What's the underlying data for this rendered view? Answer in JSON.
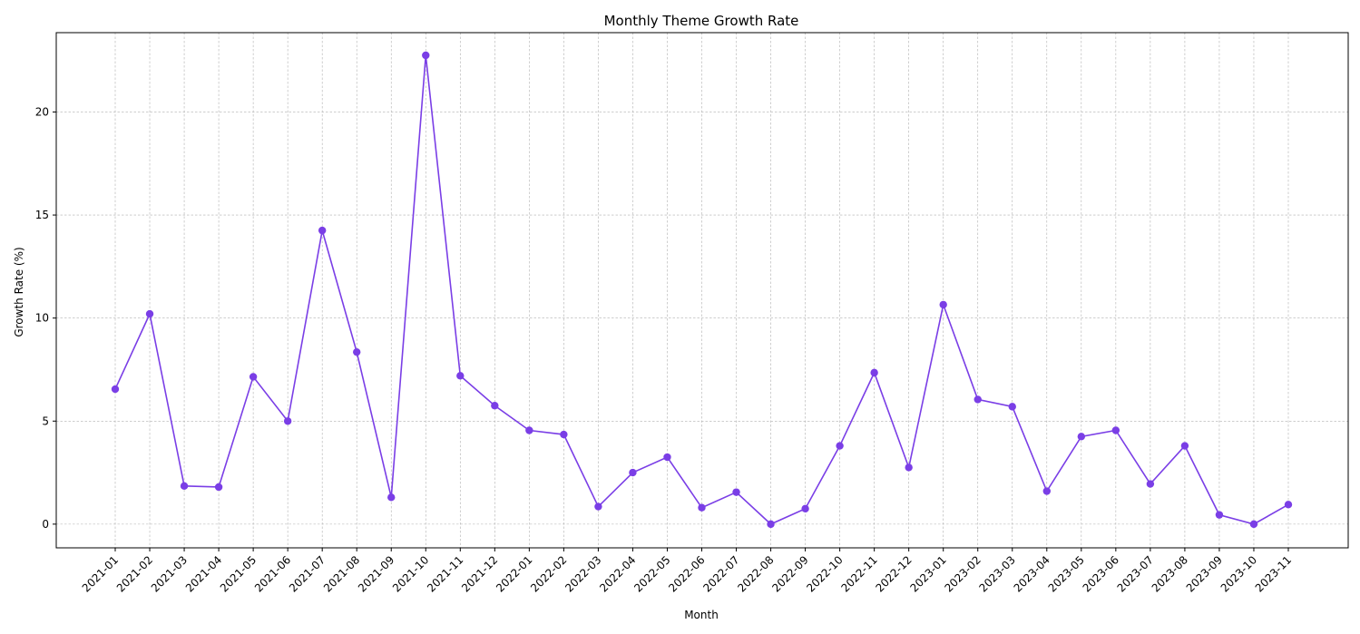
{
  "chart_data": {
    "type": "line",
    "title": "Monthly Theme Growth Rate",
    "xlabel": "Month",
    "ylabel": "Growth Rate (%)",
    "ylim": [
      -1.15,
      23.85
    ],
    "yticks": [
      0,
      5,
      10,
      15,
      20
    ],
    "grid": true,
    "line_color": "#7a3ee6",
    "categories": [
      "2021-01",
      "2021-02",
      "2021-03",
      "2021-04",
      "2021-05",
      "2021-06",
      "2021-07",
      "2021-08",
      "2021-09",
      "2021-10",
      "2021-11",
      "2021-12",
      "2022-01",
      "2022-02",
      "2022-03",
      "2022-04",
      "2022-05",
      "2022-06",
      "2022-07",
      "2022-08",
      "2022-09",
      "2022-10",
      "2022-11",
      "2022-12",
      "2023-01",
      "2023-02",
      "2023-03",
      "2023-04",
      "2023-05",
      "2023-06",
      "2023-07",
      "2023-08",
      "2023-09",
      "2023-10",
      "2023-11"
    ],
    "series": [
      {
        "values": [
          6.55,
          10.2,
          1.85,
          1.8,
          7.15,
          5.0,
          14.25,
          8.35,
          1.3,
          22.75,
          7.2,
          5.75,
          4.55,
          4.35,
          0.85,
          2.5,
          3.25,
          0.8,
          1.55,
          0.0,
          0.75,
          3.8,
          7.35,
          2.75,
          10.65,
          6.05,
          5.7,
          1.6,
          4.25,
          4.55,
          1.95,
          3.8,
          0.45,
          0.0,
          0.95
        ]
      }
    ]
  }
}
